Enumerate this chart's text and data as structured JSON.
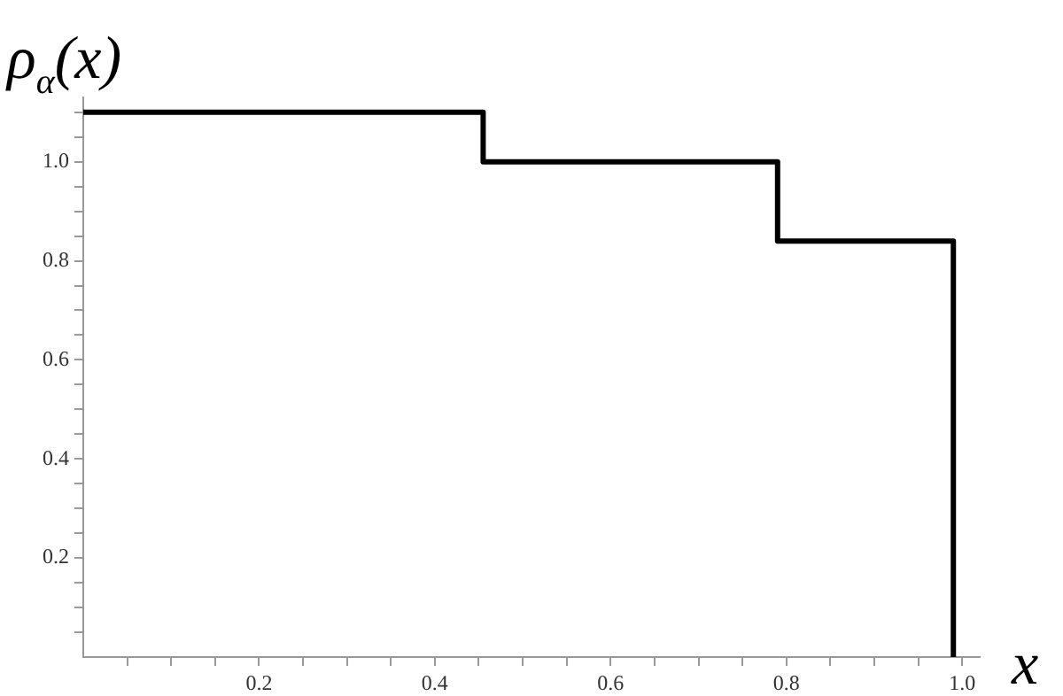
{
  "chart_data": {
    "type": "step",
    "xlabel": "x",
    "ylabel": "ρ$_{α}$(x)",
    "x": [
      0,
      0.455,
      0.79,
      0.99
    ],
    "series": [
      {
        "color": "#000000",
        "values": [
          1.1,
          1.0,
          0.84,
          0
        ]
      }
    ],
    "xlim": [
      0,
      1.02
    ],
    "ylim": [
      0,
      1.13
    ],
    "xticks": [
      {
        "value": 0.05,
        "label": null
      },
      {
        "value": 0.1,
        "label": null
      },
      {
        "value": 0.15,
        "label": null
      },
      0.2,
      {
        "value": 0.25,
        "label": null
      },
      {
        "value": 0.3,
        "label": null
      },
      {
        "value": 0.35,
        "label": null
      },
      0.4,
      {
        "value": 0.45,
        "label": null
      },
      {
        "value": 0.5,
        "label": null
      },
      {
        "value": 0.55,
        "label": null
      },
      0.6,
      {
        "value": 0.65,
        "label": null
      },
      {
        "value": 0.7,
        "label": null
      },
      {
        "value": 0.75,
        "label": null
      },
      0.8,
      {
        "value": 0.85,
        "label": null
      },
      {
        "value": 0.9,
        "label": null
      },
      {
        "value": 0.95,
        "label": null
      },
      {
        "value": 1,
        "label": "1.0"
      }
    ],
    "yticks": [
      {
        "value": 0.05,
        "label": null
      },
      {
        "value": 0.1,
        "label": null
      },
      {
        "value": 0.15,
        "label": null
      },
      0.2,
      {
        "value": 0.25,
        "label": null
      },
      {
        "value": 0.3,
        "label": null
      },
      {
        "value": 0.35,
        "label": null
      },
      0.4,
      {
        "value": 0.45,
        "label": null
      },
      {
        "value": 0.5,
        "label": null
      },
      {
        "value": 0.55,
        "label": null
      },
      0.6,
      {
        "value": 0.65,
        "label": null
      },
      {
        "value": 0.7,
        "label": null
      },
      {
        "value": 0.75,
        "label": null
      },
      0.8,
      {
        "value": 0.85,
        "label": null
      },
      {
        "value": 0.9,
        "label": null
      },
      {
        "value": 0.95,
        "label": null
      },
      {
        "value": 1,
        "label": "1.0"
      },
      {
        "value": 1.05,
        "label": null
      },
      {
        "value": 1.1,
        "label": null
      }
    ],
    "grid": false,
    "legend": false,
    "marker": "none",
    "line_style": "solid"
  }
}
